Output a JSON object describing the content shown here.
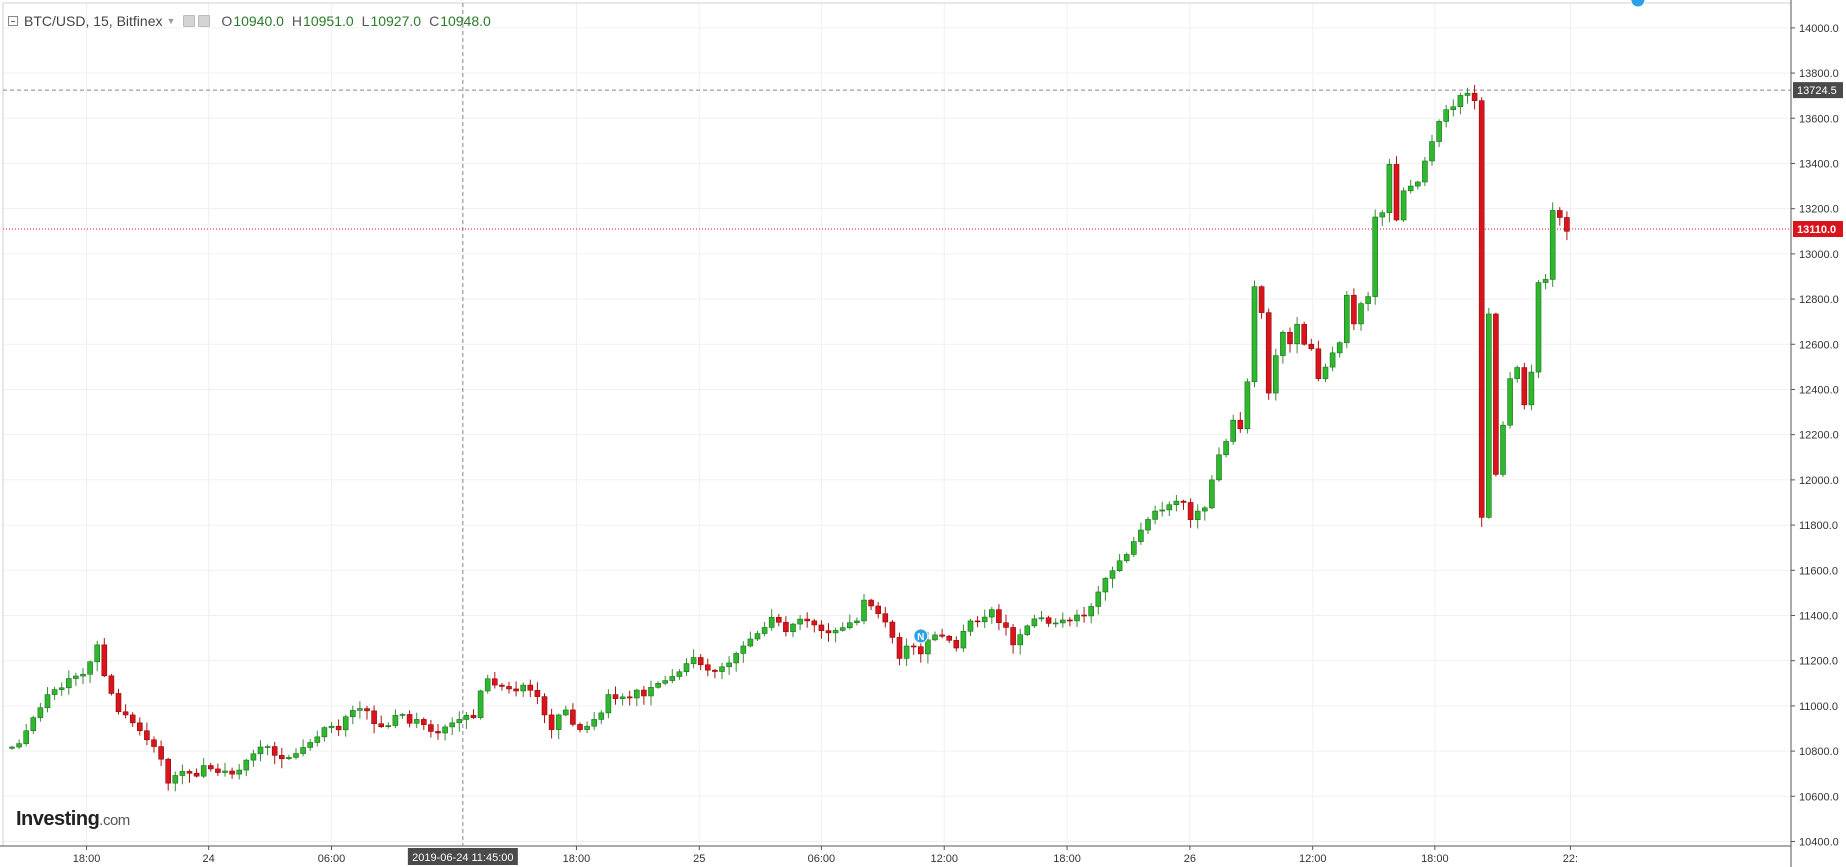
{
  "header": {
    "symbol_title": "BTC/USD, 15, Bitfinex",
    "ohlc": [
      {
        "key": "O",
        "value": "10940.0"
      },
      {
        "key": "H",
        "value": "10951.0"
      },
      {
        "key": "L",
        "value": "10927.0"
      },
      {
        "key": "C",
        "value": "10948.0"
      }
    ]
  },
  "logo": {
    "brand": "Investing",
    "suffix": ".com"
  },
  "colors": {
    "up": "#2db82d",
    "down": "#d9141c",
    "grid": "#f0f0f0",
    "price_line": "#d9141c",
    "crosshair": "#888888",
    "axis_label_bg": "#4a4a4a"
  },
  "chart_data": {
    "type": "candlestick",
    "x_tick_labels": [
      "18:00",
      "24",
      "06:00",
      "2019-06-24 11:45:00",
      "18:00",
      "25",
      "06:00",
      "12:00",
      "18:00",
      "26",
      "12:00",
      "18:00",
      "22:"
    ],
    "y_ticks": [
      10400.0,
      10600.0,
      10800.0,
      11000.0,
      11200.0,
      11400.0,
      11600.0,
      11800.0,
      12000.0,
      12200.0,
      12400.0,
      12600.0,
      12800.0,
      13000.0,
      13200.0,
      13400.0,
      13600.0,
      13800.0,
      14000.0
    ],
    "ylim": [
      10380,
      14110
    ],
    "current_price": "13110.0",
    "crosshair_price": "13724.5",
    "crosshair_time": "2019-06-24 11:45:00",
    "markers": [
      {
        "label": "N",
        "index": 128
      },
      {
        "label": "P",
        "index": 229
      }
    ],
    "closes": [
      10818,
      10833,
      10890,
      10948,
      10992,
      11050,
      11072,
      11080,
      11121,
      11132,
      11140,
      11195,
      11270,
      11133,
      11055,
      10974,
      10960,
      10925,
      10890,
      10850,
      10820,
      10764,
      10658,
      10692,
      10710,
      10702,
      10689,
      10736,
      10721,
      10705,
      10712,
      10698,
      10716,
      10760,
      10788,
      10818,
      10820,
      10781,
      10766,
      10772,
      10789,
      10816,
      10838,
      10863,
      10904,
      10910,
      10894,
      10952,
      10980,
      10988,
      10978,
      10921,
      10908,
      10913,
      10958,
      10962,
      10923,
      10940,
      10917,
      10887,
      10880,
      10907,
      10925,
      10940,
      10958,
      10948,
      11066,
      11120,
      11092,
      11086,
      11075,
      11066,
      11092,
      11069,
      11041,
      10960,
      10895,
      10960,
      10982,
      10918,
      10895,
      10910,
      10940,
      10969,
      11050,
      11032,
      11040,
      11035,
      11070,
      11044,
      11082,
      11100,
      11112,
      11130,
      11151,
      11187,
      11214,
      11182,
      11158,
      11152,
      11173,
      11190,
      11232,
      11265,
      11296,
      11320,
      11347,
      11392,
      11370,
      11328,
      11362,
      11384,
      11376,
      11358,
      11333,
      11323,
      11334,
      11346,
      11368,
      11376,
      11468,
      11442,
      11408,
      11371,
      11303,
      11210,
      11265,
      11262,
      11230,
      11292,
      11314,
      11308,
      11290,
      11256,
      11330,
      11376,
      11372,
      11393,
      11426,
      11368,
      11347,
      11270,
      11315,
      11354,
      11385,
      11390,
      11365,
      11367,
      11380,
      11376,
      11402,
      11398,
      11440,
      11504,
      11564,
      11598,
      11642,
      11670,
      11727,
      11778,
      11825,
      11862,
      11867,
      11890,
      11906,
      11900,
      11824,
      11862,
      11876,
      12000,
      12111,
      12170,
      12264,
      12226,
      12434,
      12855,
      12740,
      12384,
      12550,
      12653,
      12602,
      12688,
      12600,
      12580,
      12448,
      12499,
      12562,
      12607,
      12817,
      12690,
      12780,
      12811,
      13163,
      13182,
      13396,
      13150,
      13279,
      13300,
      13318,
      13411,
      13497,
      13586,
      13638,
      13651,
      13701,
      13711,
      13678,
      11834,
      12734,
      12024,
      12242,
      12448,
      12497,
      12332,
      12477,
      12873,
      12887,
      13192,
      13161,
      13100
    ],
    "first_open": 10812
  }
}
